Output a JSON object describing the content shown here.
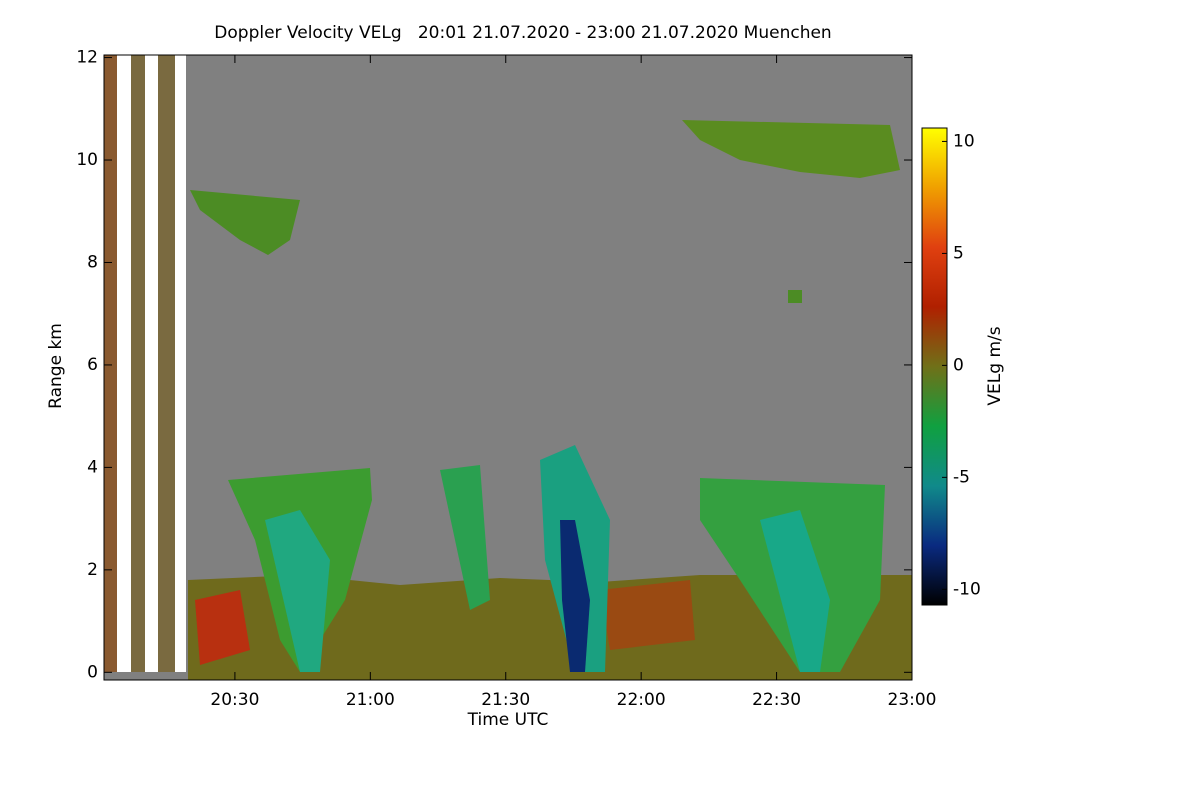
{
  "chart_data": {
    "type": "heatmap",
    "title": "Doppler Velocity VELg   20:01 21.07.2020 - 23:00 21.07.2020 Muenchen",
    "x_label": "Time UTC",
    "y_label": "Range km",
    "colorbar_label": "VELg m/s",
    "xlim": [
      1201,
      1380
    ],
    "xticks": [
      {
        "value": 1230,
        "label": "20:30"
      },
      {
        "value": 1260,
        "label": "21:00"
      },
      {
        "value": 1290,
        "label": "21:30"
      },
      {
        "value": 1320,
        "label": "22:00"
      },
      {
        "value": 1350,
        "label": "22:30"
      },
      {
        "value": 1380,
        "label": "23:00"
      }
    ],
    "ylim": [
      -0.15,
      12.05
    ],
    "yticks": [
      0,
      2,
      4,
      6,
      8,
      10,
      12
    ],
    "clim": [
      -10.7,
      10.6
    ],
    "cticks": [
      -10,
      -5,
      0,
      5,
      10
    ],
    "colorscale": [
      "#000000",
      "#0a2a80",
      "#108a8a",
      "#10a040",
      "#707018",
      "#b02000",
      "#e04010",
      "#f0a000",
      "#ffff00"
    ],
    "background_color": "#808080"
  }
}
